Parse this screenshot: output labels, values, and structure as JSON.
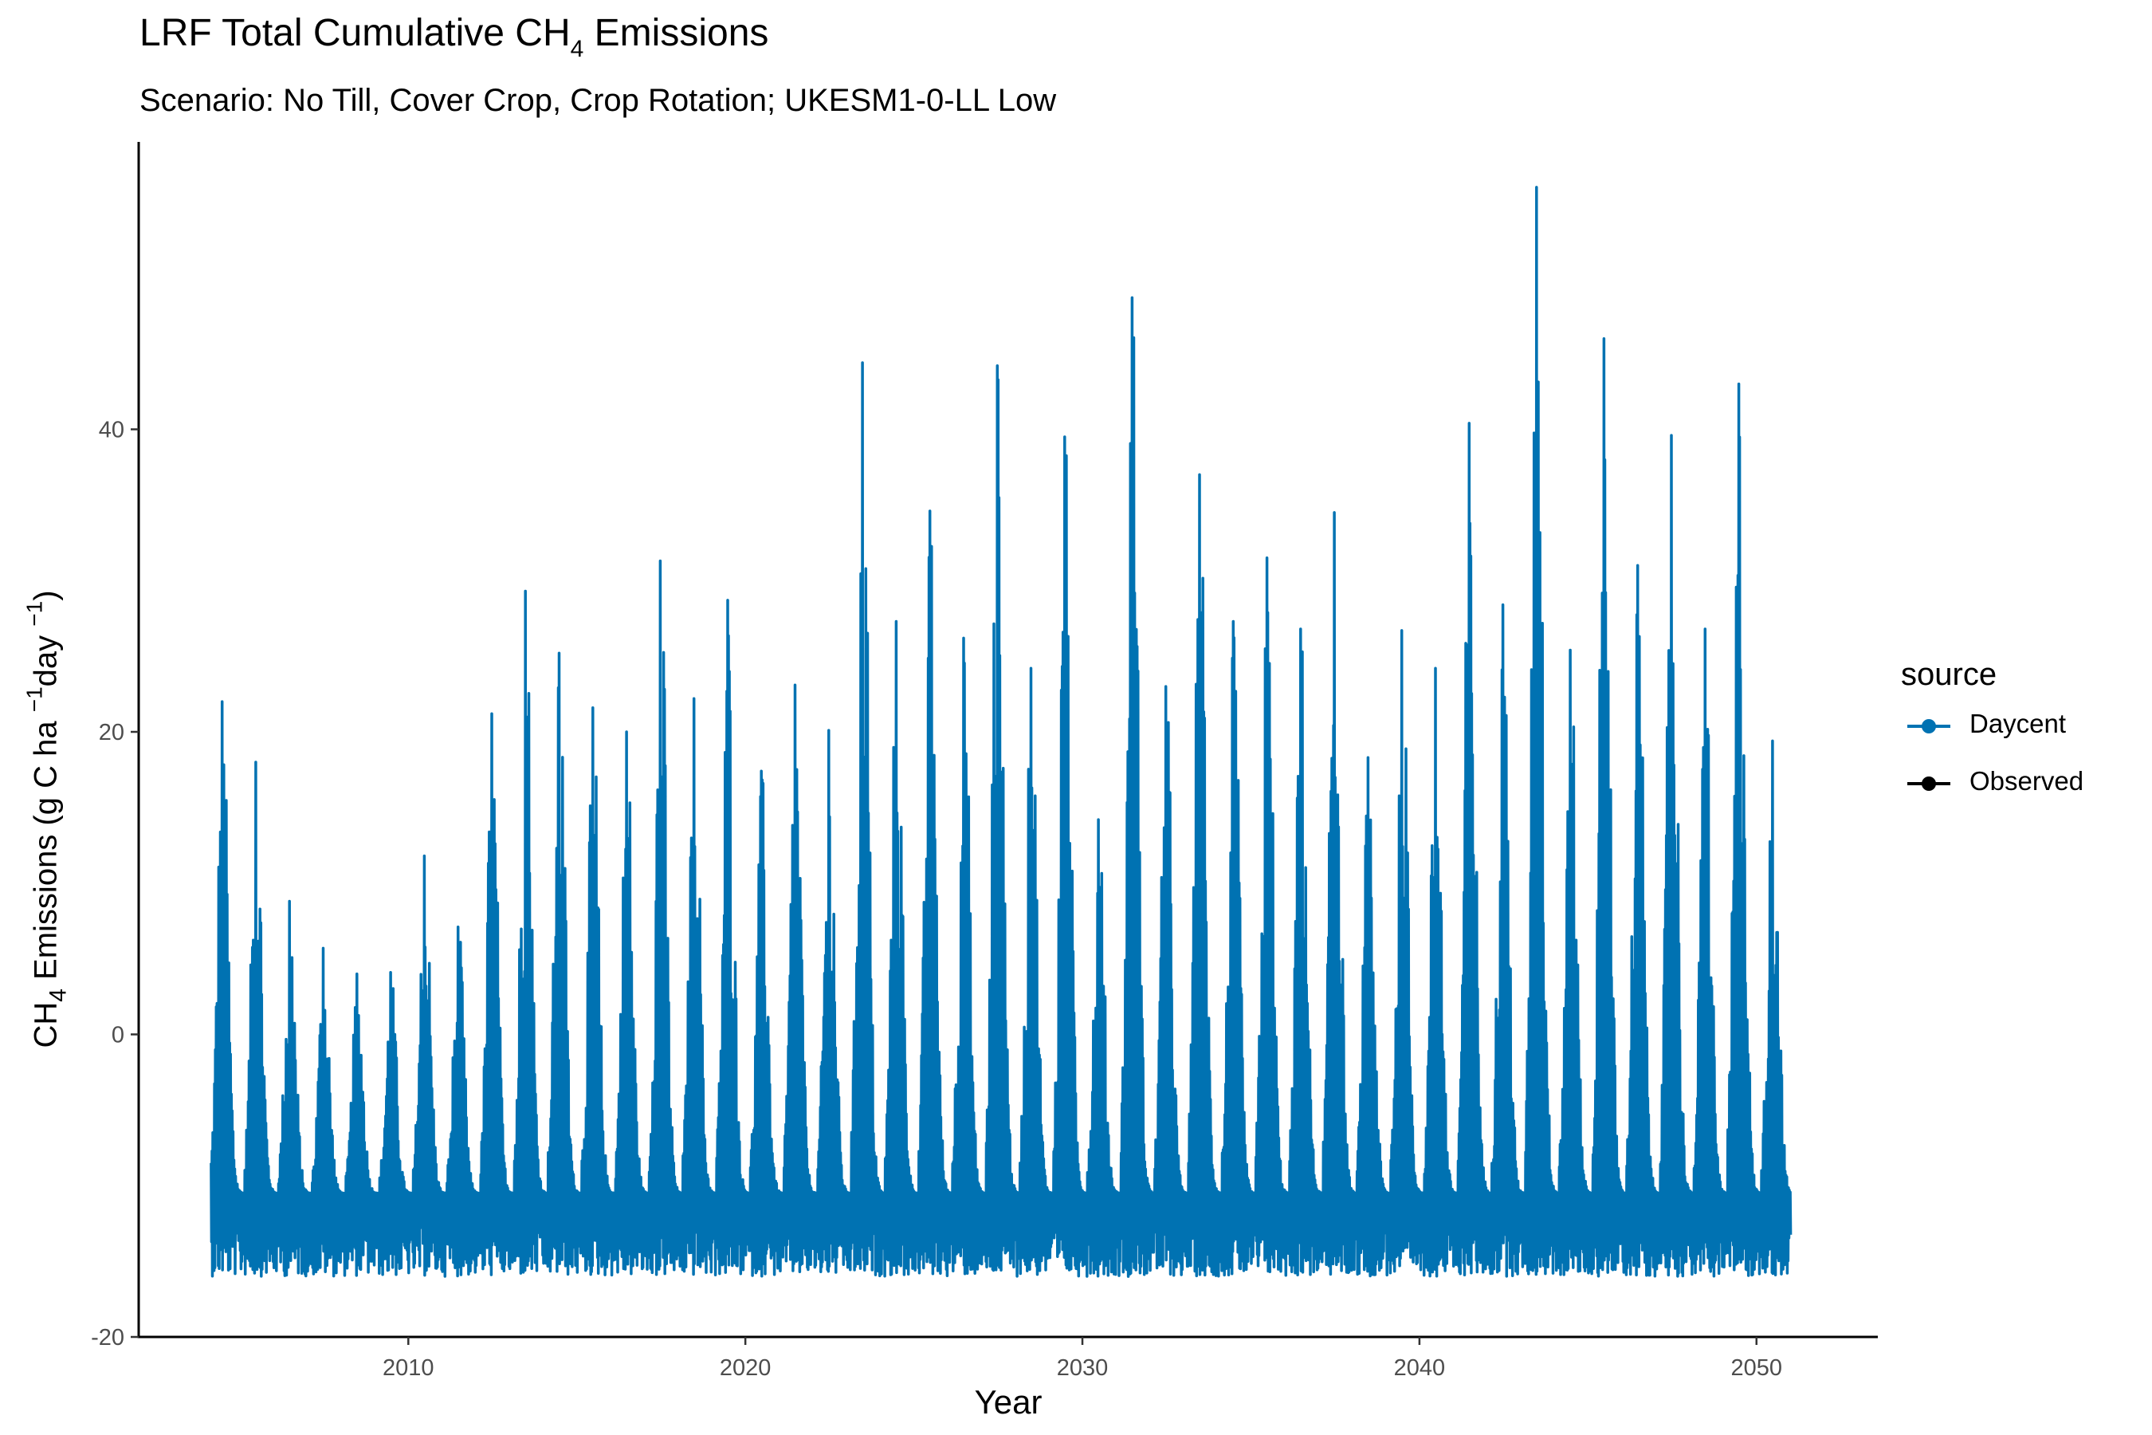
{
  "chart_data": {
    "type": "line",
    "title": {
      "prefix": "LRF Total Cumulative CH",
      "subscript": "4",
      "suffix": " Emissions"
    },
    "subtitle": "Scenario: No Till, Cover Crop, Crop Rotation; UKESM1-0-LL Low",
    "xlabel": "Year",
    "ylabel": {
      "prefix": "CH",
      "subscript": "4",
      "middle": " Emissions (g C ha ",
      "sup1": "−1",
      "middle2": "day ",
      "sup2": "−1",
      "suffix": ")"
    },
    "xlim": [
      2002.0,
      2053.6
    ],
    "ylim": [
      -20.0,
      59.0
    ],
    "x_ticks": [
      2010,
      2020,
      2030,
      2040,
      2050
    ],
    "y_ticks": [
      -20,
      0,
      20,
      40
    ],
    "y_tick_labels": [
      "-20",
      "0",
      "20",
      "40"
    ],
    "grid": false,
    "legend_position": "right",
    "legend": {
      "title": "source",
      "entries": [
        "Daycent",
        "Observed"
      ]
    },
    "series": [
      {
        "name": "Daycent",
        "color": "#0072b2",
        "x_start": 2004.0,
        "x_end": 2051.0,
        "annual_peaks": [
          {
            "year": 2004,
            "peak": 22.0
          },
          {
            "year": 2005,
            "peak": 18.0
          },
          {
            "year": 2006,
            "peak": 8.8
          },
          {
            "year": 2007,
            "peak": 5.7
          },
          {
            "year": 2008,
            "peak": 4.0
          },
          {
            "year": 2009,
            "peak": 4.1
          },
          {
            "year": 2010,
            "peak": 11.8
          },
          {
            "year": 2011,
            "peak": 7.1
          },
          {
            "year": 2012,
            "peak": 21.2
          },
          {
            "year": 2013,
            "peak": 29.3
          },
          {
            "year": 2014,
            "peak": 25.2
          },
          {
            "year": 2015,
            "peak": 21.6
          },
          {
            "year": 2016,
            "peak": 20.0
          },
          {
            "year": 2017,
            "peak": 31.3
          },
          {
            "year": 2018,
            "peak": 22.2
          },
          {
            "year": 2019,
            "peak": 28.7
          },
          {
            "year": 2020,
            "peak": 17.4
          },
          {
            "year": 2021,
            "peak": 23.1
          },
          {
            "year": 2022,
            "peak": 20.1
          },
          {
            "year": 2023,
            "peak": 44.4
          },
          {
            "year": 2024,
            "peak": 27.3
          },
          {
            "year": 2025,
            "peak": 34.6
          },
          {
            "year": 2026,
            "peak": 26.2
          },
          {
            "year": 2027,
            "peak": 44.2
          },
          {
            "year": 2028,
            "peak": 24.2
          },
          {
            "year": 2029,
            "peak": 39.5
          },
          {
            "year": 2030,
            "peak": 14.2
          },
          {
            "year": 2031,
            "peak": 48.7
          },
          {
            "year": 2032,
            "peak": 23.0
          },
          {
            "year": 2033,
            "peak": 37.0
          },
          {
            "year": 2034,
            "peak": 27.3
          },
          {
            "year": 2035,
            "peak": 31.5
          },
          {
            "year": 2036,
            "peak": 26.8
          },
          {
            "year": 2037,
            "peak": 34.5
          },
          {
            "year": 2038,
            "peak": 18.3
          },
          {
            "year": 2039,
            "peak": 26.7
          },
          {
            "year": 2040,
            "peak": 24.2
          },
          {
            "year": 2041,
            "peak": 40.4
          },
          {
            "year": 2042,
            "peak": 28.4
          },
          {
            "year": 2043,
            "peak": 56.0
          },
          {
            "year": 2044,
            "peak": 25.4
          },
          {
            "year": 2045,
            "peak": 46.0
          },
          {
            "year": 2046,
            "peak": 31.0
          },
          {
            "year": 2047,
            "peak": 39.6
          },
          {
            "year": 2048,
            "peak": 26.8
          },
          {
            "year": 2049,
            "peak": 43.0
          },
          {
            "year": 2050,
            "peak": 19.4
          }
        ],
        "annual_minimum": -16.0,
        "typical_baseline": -10.5
      }
    ]
  }
}
